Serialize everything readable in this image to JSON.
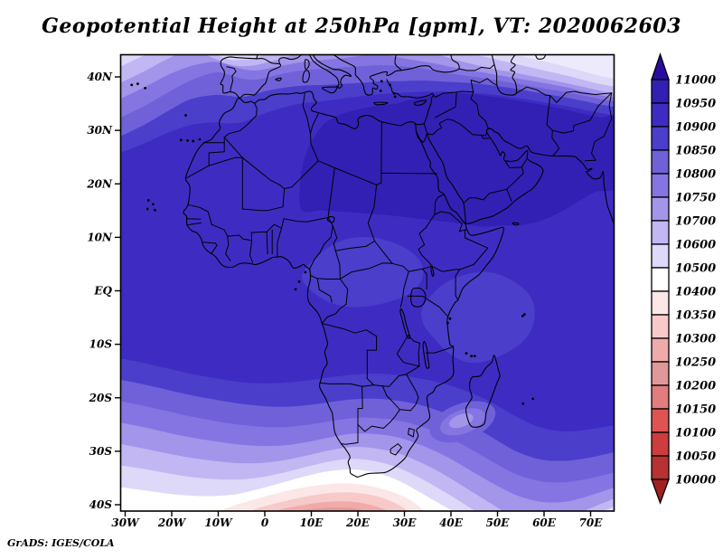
{
  "title": "Geopotential Height at 250hPa [gpm], VT: 2020062603",
  "watermark": "GrADS: IGES/COLA",
  "axes": {
    "x_tick_labels": [
      "30W",
      "20W",
      "10W",
      "0",
      "10E",
      "20E",
      "30E",
      "40E",
      "50E",
      "60E",
      "70E"
    ],
    "x_tick_lons": [
      -30,
      -20,
      -10,
      0,
      10,
      20,
      30,
      40,
      50,
      60,
      70
    ],
    "y_tick_labels": [
      "40N",
      "30N",
      "20N",
      "10N",
      "EQ",
      "10S",
      "20S",
      "30S",
      "40S"
    ],
    "y_tick_lats": [
      40,
      30,
      20,
      10,
      0,
      -10,
      -20,
      -30,
      -40
    ]
  },
  "colorbar": {
    "tick_labels": [
      "11000",
      "10950",
      "10900",
      "10850",
      "10800",
      "10750",
      "10700",
      "10600",
      "10500",
      "10400",
      "10350",
      "10300",
      "10250",
      "10200",
      "10150",
      "10100",
      "10050",
      "10000"
    ],
    "segment_colors_top_to_bottom": [
      "#3220b4",
      "#3e2cc2",
      "#4a3ecb",
      "#7061d9",
      "#8575e2",
      "#a295ea",
      "#c2b7f3",
      "#ded8f9",
      "#ffffff",
      "#fbe7e7",
      "#f7c9c9",
      "#f0aaaa",
      "#e09898",
      "#e37c7c",
      "#e05353",
      "#cd3d3d",
      "#b83232"
    ],
    "arrow_top_color": "#2a0ca0",
    "arrow_bottom_color": "#a22020"
  },
  "chart_data": {
    "type": "heatmap",
    "title": "Geopotential Height at 250hPa [gpm], VT: 2020062603",
    "variable": "Geopotential Height",
    "level": "250hPa",
    "units": "gpm",
    "valid_time": "2020062603",
    "region": "Africa, southern Europe, Middle East and surrounding oceans",
    "lon_range_deg": [
      -31,
      75
    ],
    "lat_range_deg": [
      -41.3,
      44.2
    ],
    "contour_levels_gpm": [
      10000,
      10050,
      10100,
      10150,
      10200,
      10250,
      10300,
      10350,
      10400,
      10500,
      10600,
      10700,
      10750,
      10800,
      10850,
      10900,
      10950,
      11000
    ],
    "palette_low_to_high": [
      "#b83232",
      "#cd3d3d",
      "#e05353",
      "#e37c7c",
      "#e09898",
      "#f0aaaa",
      "#f7c9c9",
      "#fbe7e7",
      "#ffffff",
      "#ded8f9",
      "#c2b7f3",
      "#a295ea",
      "#8575e2",
      "#7061d9",
      "#4a3ecb",
      "#3e2cc2",
      "#3220b4"
    ],
    "legend_position": "right vertical colorbar with out-of-range arrows",
    "grid": false,
    "features": [
      "Broad maximum above 10950 gpm (darkest blue) over the eastern Sahara, Arabian Peninsula and southwest Asia",
      "Heights 10900-10950 gpm over most of North and Central Africa",
      "Heights decrease northward over the Mediterranean; local light minimum (10500-10600 gpm) northwest of Iberia and near the Caspian in the far northeast",
      "Zonally banded decrease southward over the South Atlantic and South Indian Oceans",
      "Deep red minimum (below 10150 gpm) centered near 20E at the southern edge (about 40S), south of South Africa",
      "Weak light trough (10700-10800 gpm) southwest of Madagascar",
      "White band (10400-10500 gpm) crossing the far South Atlantic and the Cape region"
    ]
  }
}
